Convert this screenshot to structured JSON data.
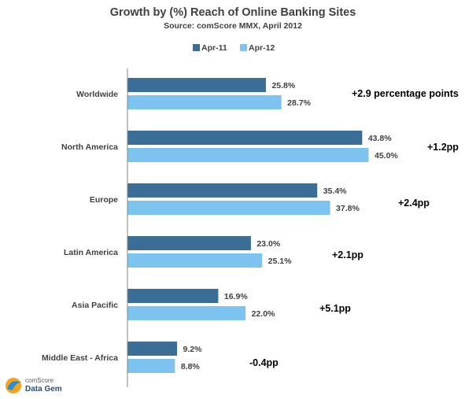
{
  "chart_data": {
    "type": "bar",
    "orientation": "horizontal",
    "title": "Growth by (%) Reach of Online Banking Sites",
    "subtitle": "Source: comScore MMX, April 2012",
    "categories": [
      "Worldwide",
      "North America",
      "Europe",
      "Latin America",
      "Asia Pacific",
      "Middle East - Africa"
    ],
    "series": [
      {
        "name": "Apr-11",
        "color": "#3b6e96",
        "values": [
          25.8,
          43.8,
          35.4,
          23.0,
          16.9,
          9.2
        ],
        "labels": [
          "25.8%",
          "43.8%",
          "35.4%",
          "23.0%",
          "16.9%",
          "9.2%"
        ]
      },
      {
        "name": "Apr-12",
        "color": "#7cc3ef",
        "values": [
          28.7,
          45.0,
          37.8,
          25.1,
          22.0,
          8.8
        ],
        "labels": [
          "28.7%",
          "45.0%",
          "37.8%",
          "25.1%",
          "22.0%",
          "8.8%"
        ]
      }
    ],
    "annotations": [
      "+2.9 percentage points",
      "+1.2pp",
      "+2.4pp",
      "+2.1pp",
      "+5.1pp",
      "-0.4pp"
    ],
    "xlim": [
      0,
      50
    ],
    "legend_position": "top-center",
    "grid": false
  },
  "logo": {
    "line1": "comScore",
    "line2": "Data Gem"
  }
}
